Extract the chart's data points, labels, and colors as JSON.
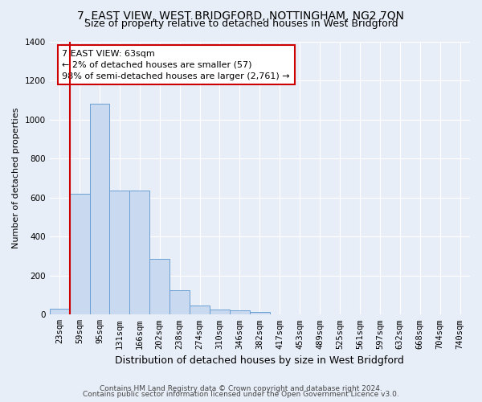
{
  "title": "7, EAST VIEW, WEST BRIDGFORD, NOTTINGHAM, NG2 7QN",
  "subtitle": "Size of property relative to detached houses in West Bridgford",
  "xlabel": "Distribution of detached houses by size in West Bridgford",
  "ylabel": "Number of detached properties",
  "bar_color": "#c9d9f0",
  "bar_edge_color": "#6a9fd4",
  "categories": [
    "23sqm",
    "59sqm",
    "95sqm",
    "131sqm",
    "166sqm",
    "202sqm",
    "238sqm",
    "274sqm",
    "310sqm",
    "346sqm",
    "382sqm",
    "417sqm",
    "453sqm",
    "489sqm",
    "525sqm",
    "561sqm",
    "597sqm",
    "632sqm",
    "668sqm",
    "704sqm",
    "740sqm"
  ],
  "values": [
    30,
    620,
    1080,
    635,
    635,
    285,
    125,
    45,
    25,
    20,
    12,
    0,
    0,
    0,
    0,
    0,
    0,
    0,
    0,
    0,
    0
  ],
  "ylim": [
    0,
    1400
  ],
  "yticks": [
    0,
    200,
    400,
    600,
    800,
    1000,
    1200,
    1400
  ],
  "annotation_text": "7 EAST VIEW: 63sqm\n← 2% of detached houses are smaller (57)\n98% of semi-detached houses are larger (2,761) →",
  "annotation_box_color": "#ffffff",
  "annotation_box_edge": "#cc0000",
  "property_line_color": "#cc0000",
  "footer_line1": "Contains HM Land Registry data © Crown copyright and database right 2024.",
  "footer_line2": "Contains public sector information licensed under the Open Government Licence v3.0.",
  "background_color": "#e8eef8",
  "grid_color": "#ffffff",
  "title_fontsize": 10,
  "subtitle_fontsize": 9,
  "xlabel_fontsize": 9,
  "ylabel_fontsize": 8,
  "footer_fontsize": 6.5,
  "tick_fontsize": 7.5
}
